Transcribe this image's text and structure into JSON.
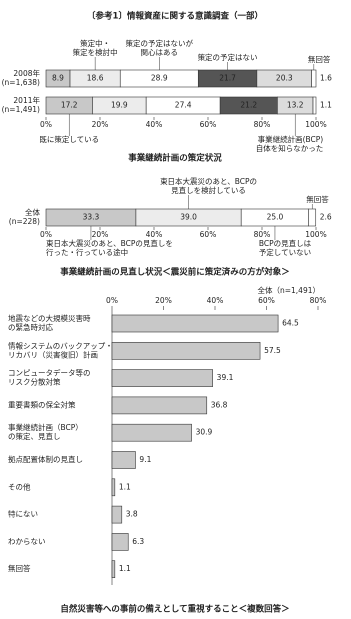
{
  "header": {
    "title": "〔参考1〕情報資産に関する意識調査（一部）"
  },
  "chart_data": [
    {
      "type": "stacked_bar",
      "title": "事業継続計画の策定状況",
      "categories": [
        [
          "2008年",
          "(n=1,638)"
        ],
        [
          "2011年",
          "(n=1,491)"
        ]
      ],
      "series": [
        {
          "name": [
            "既に策定している"
          ],
          "color": "#c8c8c8",
          "values": [
            8.9,
            17.2
          ]
        },
        {
          "name": [
            "策定中・",
            "策定を検討中"
          ],
          "color": "#ececec",
          "values": [
            18.6,
            19.9
          ]
        },
        {
          "name": [
            "策定の予定はないが",
            "関心はある"
          ],
          "color": "#ffffff",
          "values": [
            28.9,
            27.4
          ]
        },
        {
          "name": [
            "策定の予定はない"
          ],
          "color": "#555555",
          "values": [
            21.7,
            21.2
          ]
        },
        {
          "name": [
            "事業継続計画(BCP)",
            "自体を知らなかった"
          ],
          "color": "#dcdcdc",
          "values": [
            20.3,
            13.2
          ]
        },
        {
          "name": [
            "無回答"
          ],
          "color": "#ffffff",
          "values": [
            1.6,
            1.1
          ]
        }
      ],
      "xlim": [
        0,
        100
      ],
      "xticks": [
        {
          "value": 0,
          "label": "0%"
        },
        {
          "value": 20,
          "label": "20%"
        },
        {
          "value": 40,
          "label": "40%"
        },
        {
          "value": 60,
          "label": "60%"
        },
        {
          "value": 80,
          "label": "80%"
        },
        {
          "value": 100,
          "label": "100%"
        }
      ]
    },
    {
      "type": "stacked_bar",
      "title": "事業継続計画の見直し状況＜震災前に策定済みの方が対象＞",
      "categories": [
        [
          "全体",
          "(n=228)"
        ]
      ],
      "series": [
        {
          "name": [
            "東日本大震災のあと、BCPの見直しを",
            "行った・行っている途中"
          ],
          "color": "#c8c8c8",
          "values": [
            33.3
          ]
        },
        {
          "name": [
            "東日本大震災のあと、BCPの",
            "見直しを検討している"
          ],
          "color": "#ececec",
          "values": [
            39
          ],
          "value_labels": [
            "39.0"
          ]
        },
        {
          "name": [
            "BCPの見直しは",
            "予定していない"
          ],
          "color": "#ffffff",
          "values": [
            25
          ],
          "value_labels": [
            "25.0"
          ]
        },
        {
          "name": [
            "無回答"
          ],
          "color": "#ffffff",
          "values": [
            2.6
          ]
        }
      ],
      "xlim": [
        0,
        100
      ],
      "xticks": [
        {
          "value": 0,
          "label": "0%"
        },
        {
          "value": 20,
          "label": "20%"
        },
        {
          "value": 40,
          "label": "40%"
        },
        {
          "value": 60,
          "label": "60%"
        },
        {
          "value": 80,
          "label": "80%"
        },
        {
          "value": 100,
          "label": "100%"
        }
      ]
    },
    {
      "type": "bar",
      "title": "自然災害等への事前の備えとして重視すること＜複数回答＞",
      "note": "全体（n=1,491）",
      "categories": [
        [
          "地震などの大規模災害時",
          "の緊急時対応"
        ],
        [
          "情報システムのバックアップ・",
          "リカバリ（災害復旧）計画"
        ],
        [
          "コンピュータデータ等の",
          "リスク分散対策"
        ],
        [
          "重要書類の保全対策"
        ],
        [
          "事業継続計画（BCP）",
          "の策定、見直し"
        ],
        [
          "拠点配置体制の見直し"
        ],
        [
          "その他"
        ],
        [
          "特にない"
        ],
        [
          "わからない"
        ],
        [
          "無回答"
        ]
      ],
      "values": [
        64.5,
        57.5,
        39.1,
        36.8,
        30.9,
        9.1,
        1.1,
        3.8,
        6.3,
        1.1
      ],
      "color": "#c8c8c8",
      "xlim": [
        0,
        80
      ],
      "xticks": [
        {
          "value": 0,
          "label": "0%"
        },
        {
          "value": 20,
          "label": "20%"
        },
        {
          "value": 40,
          "label": "40%"
        },
        {
          "value": 60,
          "label": "60%"
        },
        {
          "value": 80,
          "label": "80%"
        }
      ]
    }
  ]
}
